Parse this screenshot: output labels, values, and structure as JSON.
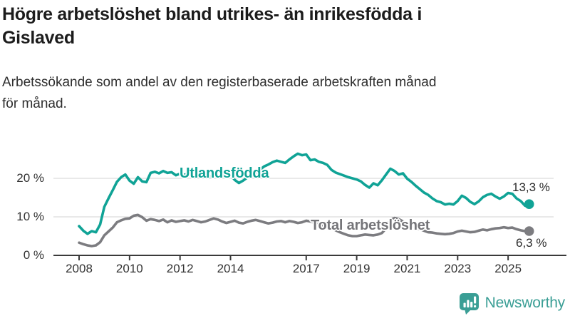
{
  "header": {
    "title_line1": "Högre arbetslöshet bland utrikes- än inrikesfödda i",
    "title_line2": "Gislaved",
    "subtitle_line1": "Arbetssökande som andel av den registerbaserade arbetskraften månad",
    "subtitle_line2": "för månad."
  },
  "chart_data": {
    "type": "line",
    "unit": "%",
    "x_start": "2008-01",
    "x_step_months": 2,
    "x_ticks": [
      2008,
      2010,
      2012,
      2014,
      2017,
      2019,
      2021,
      2023,
      2025
    ],
    "y_tick_labels": [
      "20 %",
      "10 %",
      "0 %"
    ],
    "y_tick_values": [
      20,
      10,
      0
    ],
    "ylim": [
      0,
      27.5
    ],
    "grid": "horizontal",
    "legend": "inline-labels",
    "series": [
      {
        "name": "Utlandsfödda",
        "color": "#10a396",
        "end_label": "13,3 %",
        "end_value": 13.3,
        "values": [
          7.6,
          6.4,
          5.6,
          6.3,
          6.0,
          8.0,
          12.6,
          14.8,
          16.9,
          19.1,
          20.3,
          21.0,
          19.4,
          18.6,
          20.3,
          19.2,
          19.0,
          21.4,
          21.7,
          21.3,
          21.9,
          21.4,
          21.6,
          20.8,
          21.2,
          20.9,
          21.3,
          20.7,
          20.9,
          20.5,
          20.8,
          20.4,
          20.9,
          20.3,
          20.7,
          20.9,
          20.9,
          19.6,
          18.8,
          19.4,
          20.2,
          20.6,
          21.4,
          22.2,
          23.1,
          23.6,
          24.2,
          24.6,
          24.3,
          24.0,
          24.9,
          25.7,
          26.4,
          26.0,
          26.2,
          24.7,
          24.9,
          24.3,
          24.0,
          23.5,
          22.2,
          21.5,
          21.1,
          20.7,
          20.3,
          20.0,
          19.7,
          19.2,
          18.3,
          17.6,
          18.7,
          18.2,
          19.5,
          21.0,
          22.5,
          21.9,
          21.0,
          21.3,
          19.9,
          19.1,
          18.1,
          17.2,
          16.3,
          15.7,
          14.8,
          14.1,
          13.8,
          13.2,
          13.4,
          13.2,
          14.1,
          15.5,
          14.9,
          13.9,
          13.3,
          14.0,
          15.1,
          15.7,
          16.0,
          15.3,
          14.7,
          15.3,
          16.2,
          16.0,
          14.8,
          14.1,
          12.9,
          13.3
        ]
      },
      {
        "name": "Total arbetslöshet",
        "color": "#7c7c80",
        "end_label": "6,3 %",
        "end_value": 6.3,
        "values": [
          3.3,
          2.9,
          2.6,
          2.4,
          2.6,
          3.4,
          5.2,
          6.2,
          7.2,
          8.6,
          9.1,
          9.5,
          9.6,
          10.3,
          10.5,
          9.9,
          9.0,
          9.4,
          9.2,
          8.9,
          9.3,
          8.6,
          9.1,
          8.7,
          8.9,
          9.1,
          8.8,
          9.2,
          8.9,
          8.6,
          8.8,
          9.2,
          9.6,
          9.3,
          8.8,
          8.4,
          8.7,
          9.0,
          8.5,
          8.3,
          8.7,
          9.0,
          9.2,
          8.9,
          8.6,
          8.3,
          8.5,
          8.8,
          8.9,
          8.6,
          8.9,
          8.7,
          8.4,
          8.6,
          9.0,
          8.8,
          8.5,
          8.2,
          7.8,
          7.4,
          7.0,
          6.5,
          6.0,
          5.6,
          5.2,
          5.0,
          5.0,
          5.2,
          5.4,
          5.3,
          5.2,
          5.4,
          5.8,
          7.0,
          9.2,
          9.7,
          9.4,
          8.8,
          8.3,
          7.8,
          7.2,
          6.8,
          6.4,
          6.0,
          5.9,
          5.7,
          5.6,
          5.5,
          5.6,
          5.8,
          6.2,
          6.4,
          6.2,
          6.0,
          6.1,
          6.4,
          6.7,
          6.5,
          6.8,
          7.0,
          7.1,
          7.3,
          7.1,
          7.2,
          6.8,
          6.5,
          6.3,
          6.3
        ]
      }
    ]
  },
  "branding": {
    "logo_text": "Newsworthy",
    "logo_icon": "speech-bubble-bar-chart-icon",
    "logo_color": "#3a9e95"
  },
  "colors": {
    "grid": "#dcdcdc",
    "axis": "#3a3a3a",
    "tick_text": "#333333",
    "title_text": "#1c1c1c",
    "teal": "#10a396",
    "gray": "#7c7c80",
    "gray_label": "#757579"
  }
}
